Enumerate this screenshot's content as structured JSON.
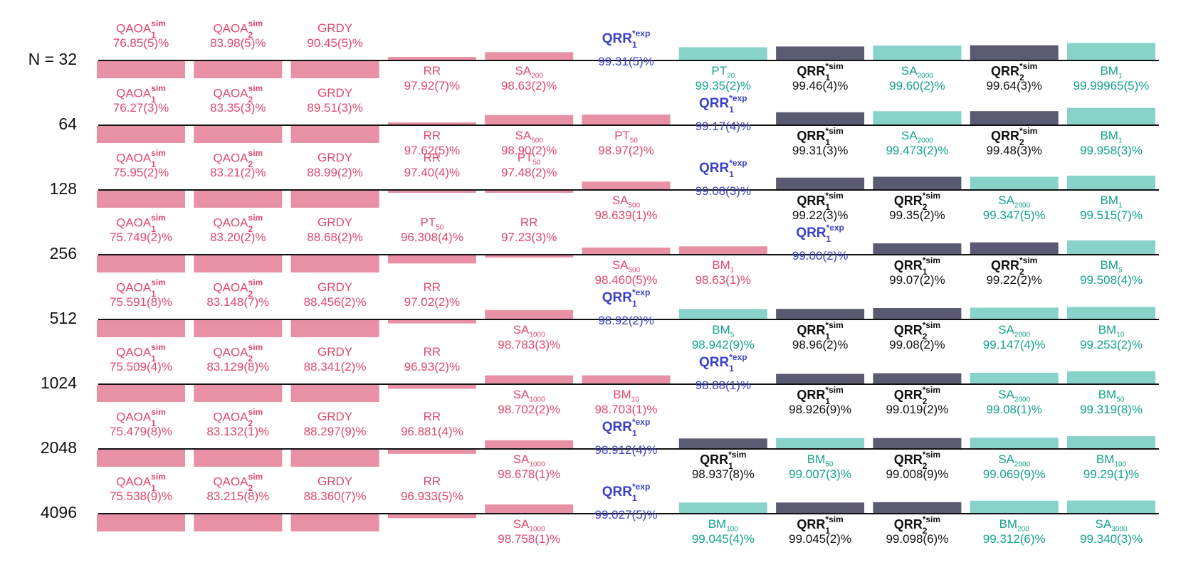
{
  "colors": {
    "qaoa": "#e1486d",
    "qaoa_bar": "#e891a5",
    "classical": "#13a38c",
    "classical_bar": "#87d3c9",
    "qrr_exp": "#3b40c8",
    "qrr_sim": "#111111",
    "qrr_sim_bar": "#5a5a72",
    "baseline": "#111111"
  },
  "chart_data": {
    "type": "bar",
    "title": "",
    "orientation": "rows ranked by approximation ratio",
    "row_labels": [
      "N = 32",
      "64",
      "128",
      "256",
      "512",
      "1024",
      "2048",
      "4096"
    ],
    "baselines": [
      97.5,
      97.5,
      97.5,
      97.5,
      97.5,
      97.5,
      97.5,
      97.5
    ],
    "unit": "%",
    "rows": [
      {
        "N": "N = 32",
        "entries": [
          {
            "base": "QAOA",
            "sub": "1",
            "sup": "sim",
            "value": "76.85(5)%",
            "v": 76.85,
            "group": "qaoa"
          },
          {
            "base": "QAOA",
            "sub": "2",
            "sup": "sim",
            "value": "83.98(5)%",
            "v": 83.98,
            "group": "qaoa"
          },
          {
            "base": "GRDY",
            "value": "90.45(5)%",
            "v": 90.45,
            "group": "qaoa"
          },
          {
            "base": "RR",
            "value": "97.92(7)%",
            "v": 97.92,
            "group": "qaoa"
          },
          {
            "base": "SA",
            "sub": "200",
            "value": "98.63(2)%",
            "v": 98.63,
            "group": "qaoa"
          },
          {
            "base": "QRR",
            "sub": "1",
            "sup": "*exp",
            "value": "99.31(5)%",
            "v": 99.31,
            "group": "qrr_exp"
          },
          {
            "base": "PT",
            "sub": "20",
            "value": "99.35(2)%",
            "v": 99.35,
            "group": "classical"
          },
          {
            "base": "QRR",
            "sub": "1",
            "sup": "*sim",
            "value": "99.46(4)%",
            "v": 99.46,
            "group": "qrr_sim"
          },
          {
            "base": "SA",
            "sub": "2000",
            "value": "99.60(2)%",
            "v": 99.6,
            "group": "classical"
          },
          {
            "base": "QRR",
            "sub": "2",
            "sup": "*sim",
            "value": "99.64(3)%",
            "v": 99.64,
            "group": "qrr_sim"
          },
          {
            "base": "BM",
            "sub": "1",
            "value": "99.99965(5)%",
            "v": 99.99965,
            "group": "classical"
          }
        ]
      },
      {
        "N": "64",
        "entries": [
          {
            "base": "QAOA",
            "sub": "1",
            "sup": "sim",
            "value": "76.27(3)%",
            "v": 76.27,
            "group": "qaoa"
          },
          {
            "base": "QAOA",
            "sub": "2",
            "sup": "sim",
            "value": "83.35(3)%",
            "v": 83.35,
            "group": "qaoa"
          },
          {
            "base": "GRDY",
            "value": "89.51(3)%",
            "v": 89.51,
            "group": "qaoa"
          },
          {
            "base": "RR",
            "value": "97.62(5)%",
            "v": 97.62,
            "group": "qaoa"
          },
          {
            "base": "SA",
            "sub": "500",
            "value": "98.90(2)%",
            "v": 98.9,
            "group": "qaoa"
          },
          {
            "base": "PT",
            "sub": "50",
            "value": "98.97(2)%",
            "v": 98.97,
            "group": "qaoa"
          },
          {
            "base": "QRR",
            "sub": "1",
            "sup": "*exp",
            "value": "99.17(4)%",
            "v": 99.17,
            "group": "qrr_exp"
          },
          {
            "base": "QRR",
            "sub": "1",
            "sup": "*sim",
            "value": "99.31(3)%",
            "v": 99.31,
            "group": "qrr_sim"
          },
          {
            "base": "SA",
            "sub": "2000",
            "value": "99.473(2)%",
            "v": 99.473,
            "group": "classical"
          },
          {
            "base": "QRR",
            "sub": "2",
            "sup": "*sim",
            "value": "99.48(3)%",
            "v": 99.48,
            "group": "qrr_sim"
          },
          {
            "base": "BM",
            "sub": "1",
            "value": "99.958(3)%",
            "v": 99.958,
            "group": "classical"
          }
        ]
      },
      {
        "N": "128",
        "entries": [
          {
            "base": "QAOA",
            "sub": "1",
            "sup": "sim",
            "value": "75.95(2)%",
            "v": 75.95,
            "group": "qaoa"
          },
          {
            "base": "QAOA",
            "sub": "2",
            "sup": "sim",
            "value": "83.21(2)%",
            "v": 83.21,
            "group": "qaoa"
          },
          {
            "base": "GRDY",
            "value": "88.99(2)%",
            "v": 88.99,
            "group": "qaoa"
          },
          {
            "base": "RR",
            "value": "97.40(4)%",
            "v": 97.4,
            "group": "qaoa"
          },
          {
            "base": "PT",
            "sub": "50",
            "value": "97.48(2)%",
            "v": 97.48,
            "group": "qaoa"
          },
          {
            "base": "SA",
            "sub": "500",
            "value": "98.639(1)%",
            "v": 98.639,
            "group": "qaoa"
          },
          {
            "base": "QRR",
            "sub": "1",
            "sup": "*exp",
            "value": "99.08(3)%",
            "v": 99.08,
            "group": "qrr_exp"
          },
          {
            "base": "QRR",
            "sub": "1",
            "sup": "*sim",
            "value": "99.22(3)%",
            "v": 99.22,
            "group": "qrr_sim"
          },
          {
            "base": "QRR",
            "sub": "2",
            "sup": "*sim",
            "value": "99.35(2)%",
            "v": 99.35,
            "group": "qrr_sim"
          },
          {
            "base": "SA",
            "sub": "2000",
            "value": "99.347(5)%",
            "v": 99.347,
            "group": "classical"
          },
          {
            "base": "BM",
            "sub": "1",
            "value": "99.515(7)%",
            "v": 99.515,
            "group": "classical"
          }
        ]
      },
      {
        "N": "256",
        "entries": [
          {
            "base": "QAOA",
            "sub": "1",
            "sup": "sim",
            "value": "75.749(2)%",
            "v": 75.749,
            "group": "qaoa"
          },
          {
            "base": "QAOA",
            "sub": "2",
            "sup": "sim",
            "value": "83.20(2)%",
            "v": 83.2,
            "group": "qaoa"
          },
          {
            "base": "GRDY",
            "value": "88.68(2)%",
            "v": 88.68,
            "group": "qaoa"
          },
          {
            "base": "PT",
            "sub": "50",
            "value": "96.308(4)%",
            "v": 96.308,
            "group": "qaoa"
          },
          {
            "base": "RR",
            "value": "97.23(3)%",
            "v": 97.23,
            "group": "qaoa"
          },
          {
            "base": "SA",
            "sub": "500",
            "value": "98.460(5)%",
            "v": 98.46,
            "group": "qaoa"
          },
          {
            "base": "BM",
            "sub": "1",
            "value": "98.63(1)%",
            "v": 98.63,
            "group": "qaoa"
          },
          {
            "base": "QRR",
            "sub": "1",
            "sup": "*exp",
            "value": "99.00(2)%",
            "v": 99.0,
            "group": "qrr_exp"
          },
          {
            "base": "QRR",
            "sub": "1",
            "sup": "*sim",
            "value": "99.07(2)%",
            "v": 99.07,
            "group": "qrr_sim"
          },
          {
            "base": "QRR",
            "sub": "2",
            "sup": "*sim",
            "value": "99.22(2)%",
            "v": 99.22,
            "group": "qrr_sim"
          },
          {
            "base": "BM",
            "sub": "5",
            "value": "99.508(4)%",
            "v": 99.508,
            "group": "classical"
          }
        ]
      },
      {
        "N": "512",
        "entries": [
          {
            "base": "QAOA",
            "sub": "1",
            "sup": "sim",
            "value": "75.591(8)%",
            "v": 75.591,
            "group": "qaoa"
          },
          {
            "base": "QAOA",
            "sub": "2",
            "sup": "sim",
            "value": "83.148(7)%",
            "v": 83.148,
            "group": "qaoa"
          },
          {
            "base": "GRDY",
            "value": "88.456(2)%",
            "v": 88.456,
            "group": "qaoa"
          },
          {
            "base": "RR",
            "value": "97.02(2)%",
            "v": 97.02,
            "group": "qaoa"
          },
          {
            "base": "SA",
            "sub": "1000",
            "value": "98.783(3)%",
            "v": 98.783,
            "group": "qaoa"
          },
          {
            "base": "QRR",
            "sub": "1",
            "sup": "*exp",
            "value": "98.92(2)%",
            "v": 98.92,
            "group": "qrr_exp"
          },
          {
            "base": "BM",
            "sub": "5",
            "value": "98.942(9)%",
            "v": 98.942,
            "group": "classical"
          },
          {
            "base": "QRR",
            "sub": "1",
            "sup": "*sim",
            "value": "98.96(2)%",
            "v": 98.96,
            "group": "qrr_sim"
          },
          {
            "base": "QRR",
            "sub": "2",
            "sup": "*sim",
            "value": "99.08(2)%",
            "v": 99.08,
            "group": "qrr_sim"
          },
          {
            "base": "SA",
            "sub": "2000",
            "value": "99.147(4)%",
            "v": 99.147,
            "group": "classical"
          },
          {
            "base": "BM",
            "sub": "10",
            "value": "99.253(2)%",
            "v": 99.253,
            "group": "classical"
          }
        ]
      },
      {
        "N": "1024",
        "entries": [
          {
            "base": "QAOA",
            "sub": "1",
            "sup": "sim",
            "value": "75.509(4)%",
            "v": 75.509,
            "group": "qaoa"
          },
          {
            "base": "QAOA",
            "sub": "2",
            "sup": "sim",
            "value": "83.129(8)%",
            "v": 83.129,
            "group": "qaoa"
          },
          {
            "base": "GRDY",
            "value": "88.341(2)%",
            "v": 88.341,
            "group": "qaoa"
          },
          {
            "base": "RR",
            "value": "96.93(2)%",
            "v": 96.93,
            "group": "qaoa"
          },
          {
            "base": "SA",
            "sub": "1000",
            "value": "98.702(2)%",
            "v": 98.702,
            "group": "qaoa"
          },
          {
            "base": "BM",
            "sub": "10",
            "value": "98.703(1)%",
            "v": 98.703,
            "group": "qaoa"
          },
          {
            "base": "QRR",
            "sub": "1",
            "sup": "*exp",
            "value": "98.88(1)%",
            "v": 98.88,
            "group": "qrr_exp"
          },
          {
            "base": "QRR",
            "sub": "1",
            "sup": "*sim",
            "value": "98.926(9)%",
            "v": 98.926,
            "group": "qrr_sim"
          },
          {
            "base": "QRR",
            "sub": "2",
            "sup": "*sim",
            "value": "99.019(2)%",
            "v": 99.019,
            "group": "qrr_sim"
          },
          {
            "base": "SA",
            "sub": "2000",
            "value": "99.08(1)%",
            "v": 99.08,
            "group": "classical"
          },
          {
            "base": "BM",
            "sub": "50",
            "value": "99.319(8)%",
            "v": 99.319,
            "group": "classical"
          }
        ]
      },
      {
        "N": "2048",
        "entries": [
          {
            "base": "QAOA",
            "sub": "1",
            "sup": "sim",
            "value": "75.479(8)%",
            "v": 75.479,
            "group": "qaoa"
          },
          {
            "base": "QAOA",
            "sub": "2",
            "sup": "sim",
            "value": "83.132(1)%",
            "v": 83.132,
            "group": "qaoa"
          },
          {
            "base": "GRDY",
            "value": "88.297(9)%",
            "v": 88.297,
            "group": "qaoa"
          },
          {
            "base": "RR",
            "value": "96.881(4)%",
            "v": 96.881,
            "group": "qaoa"
          },
          {
            "base": "SA",
            "sub": "1000",
            "value": "98.678(1)%",
            "v": 98.678,
            "group": "qaoa"
          },
          {
            "base": "QRR",
            "sub": "1",
            "sup": "*exp",
            "value": "98.912(4)%",
            "v": 98.912,
            "group": "qrr_exp"
          },
          {
            "base": "QRR",
            "sub": "1",
            "sup": "*sim",
            "value": "98.937(8)%",
            "v": 98.937,
            "group": "qrr_sim"
          },
          {
            "base": "BM",
            "sub": "50",
            "value": "99.007(3)%",
            "v": 99.007,
            "group": "classical"
          },
          {
            "base": "QRR",
            "sub": "2",
            "sup": "*sim",
            "value": "99.008(9)%",
            "v": 99.008,
            "group": "qrr_sim"
          },
          {
            "base": "SA",
            "sub": "2000",
            "value": "99.069(9)%",
            "v": 99.069,
            "group": "classical"
          },
          {
            "base": "BM",
            "sub": "100",
            "value": "99.29(1)%",
            "v": 99.29,
            "group": "classical"
          }
        ]
      },
      {
        "N": "4096",
        "entries": [
          {
            "base": "QAOA",
            "sub": "1",
            "sup": "sim",
            "value": "75.538(9)%",
            "v": 75.538,
            "group": "qaoa"
          },
          {
            "base": "QAOA",
            "sub": "2",
            "sup": "sim",
            "value": "83.215(8)%",
            "v": 83.215,
            "group": "qaoa"
          },
          {
            "base": "GRDY",
            "value": "88.360(7)%",
            "v": 88.36,
            "group": "qaoa"
          },
          {
            "base": "RR",
            "value": "96.933(5)%",
            "v": 96.933,
            "group": "qaoa"
          },
          {
            "base": "SA",
            "sub": "1000",
            "value": "98.758(1)%",
            "v": 98.758,
            "group": "qaoa"
          },
          {
            "base": "QRR",
            "sub": "1",
            "sup": "*exp",
            "value": "99.027(5)%",
            "v": 99.027,
            "group": "qrr_exp"
          },
          {
            "base": "BM",
            "sub": "100",
            "value": "99.045(4)%",
            "v": 99.045,
            "group": "classical"
          },
          {
            "base": "QRR",
            "sub": "1",
            "sup": "*sim",
            "value": "99.045(2)%",
            "v": 99.045,
            "group": "qrr_sim"
          },
          {
            "base": "QRR",
            "sub": "2",
            "sup": "*sim",
            "value": "99.098(6)%",
            "v": 99.098,
            "group": "qrr_sim"
          },
          {
            "base": "BM",
            "sub": "200",
            "value": "99.312(6)%",
            "v": 99.312,
            "group": "classical"
          },
          {
            "base": "SA",
            "sub": "3000",
            "value": "99.340(3)%",
            "v": 99.34,
            "group": "classical"
          }
        ]
      }
    ]
  }
}
